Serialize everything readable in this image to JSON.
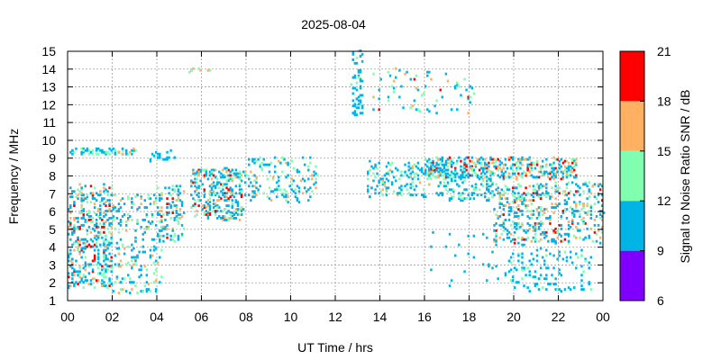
{
  "chart_data": {
    "type": "heatmap",
    "title": "2025-08-04",
    "xlabel": "UT Time / hrs",
    "ylabel": "Frequency / MHz",
    "xlim": [
      0,
      24
    ],
    "ylim": [
      1,
      15
    ],
    "x_ticks": [
      "00",
      "02",
      "04",
      "06",
      "08",
      "10",
      "12",
      "14",
      "16",
      "18",
      "20",
      "22",
      "00"
    ],
    "y_ticks": [
      "1",
      "2",
      "3",
      "4",
      "5",
      "6",
      "7",
      "8",
      "9",
      "10",
      "11",
      "12",
      "13",
      "14",
      "15"
    ],
    "grid": true,
    "colorbar": {
      "label": "Signal to Noise Ratio SNR / dB",
      "ticks": [
        "6",
        "9",
        "12",
        "15",
        "18",
        "21"
      ],
      "bins": [
        {
          "min": 6,
          "max": 9,
          "color": "#8000ff"
        },
        {
          "min": 9,
          "max": 12,
          "color": "#00b4e6"
        },
        {
          "min": 12,
          "max": 15,
          "color": "#80ffb0"
        },
        {
          "min": 15,
          "max": 18,
          "color": "#ffb060"
        },
        {
          "min": 18,
          "max": 21,
          "color": "#ff0000"
        }
      ]
    },
    "clusters": [
      {
        "t": [
          0.0,
          2.0
        ],
        "f": [
          1.7,
          7.5
        ],
        "n": 420,
        "snr": [
          9,
          20
        ]
      },
      {
        "t": [
          2.0,
          4.2
        ],
        "f": [
          1.4,
          7.0
        ],
        "n": 200,
        "snr": [
          9,
          18
        ]
      },
      {
        "t": [
          4.0,
          5.2
        ],
        "f": [
          4.3,
          7.4
        ],
        "n": 110,
        "snr": [
          9,
          19
        ]
      },
      {
        "t": [
          5.5,
          7.8
        ],
        "f": [
          5.5,
          8.4
        ],
        "n": 300,
        "snr": [
          9,
          20
        ]
      },
      {
        "t": [
          7.8,
          11.2
        ],
        "f": [
          6.5,
          9.0
        ],
        "n": 150,
        "snr": [
          9,
          16
        ]
      },
      {
        "t": [
          0.0,
          3.0
        ],
        "f": [
          9.2,
          9.5
        ],
        "n": 60,
        "snr": [
          9,
          16
        ]
      },
      {
        "t": [
          3.6,
          4.8
        ],
        "f": [
          8.8,
          9.4
        ],
        "n": 20,
        "snr": [
          9,
          12
        ]
      },
      {
        "t": [
          12.7,
          13.2
        ],
        "f": [
          11.4,
          15.0
        ],
        "n": 60,
        "snr": [
          9,
          13
        ]
      },
      {
        "t": [
          13.4,
          16.2
        ],
        "f": [
          6.8,
          8.8
        ],
        "n": 140,
        "snr": [
          9,
          16
        ]
      },
      {
        "t": [
          13.5,
          18.2
        ],
        "f": [
          11.5,
          14.0
        ],
        "n": 70,
        "snr": [
          9,
          20
        ]
      },
      {
        "t": [
          16.0,
          22.8
        ],
        "f": [
          7.8,
          9.0
        ],
        "n": 420,
        "snr": [
          9,
          21
        ]
      },
      {
        "t": [
          16.5,
          19.0
        ],
        "f": [
          6.6,
          8.4
        ],
        "n": 140,
        "snr": [
          9,
          15
        ]
      },
      {
        "t": [
          19.0,
          24.0
        ],
        "f": [
          4.2,
          7.6
        ],
        "n": 480,
        "snr": [
          9,
          20
        ]
      },
      {
        "t": [
          19.6,
          23.4
        ],
        "f": [
          1.5,
          3.8
        ],
        "n": 110,
        "snr": [
          9,
          13
        ]
      },
      {
        "t": [
          16.2,
          21.5
        ],
        "f": [
          1.8,
          4.8
        ],
        "n": 40,
        "snr": [
          9,
          12
        ]
      },
      {
        "t": [
          5.4,
          6.4
        ],
        "f": [
          13.8,
          14.0
        ],
        "n": 8,
        "snr": [
          12,
          20
        ]
      }
    ]
  }
}
